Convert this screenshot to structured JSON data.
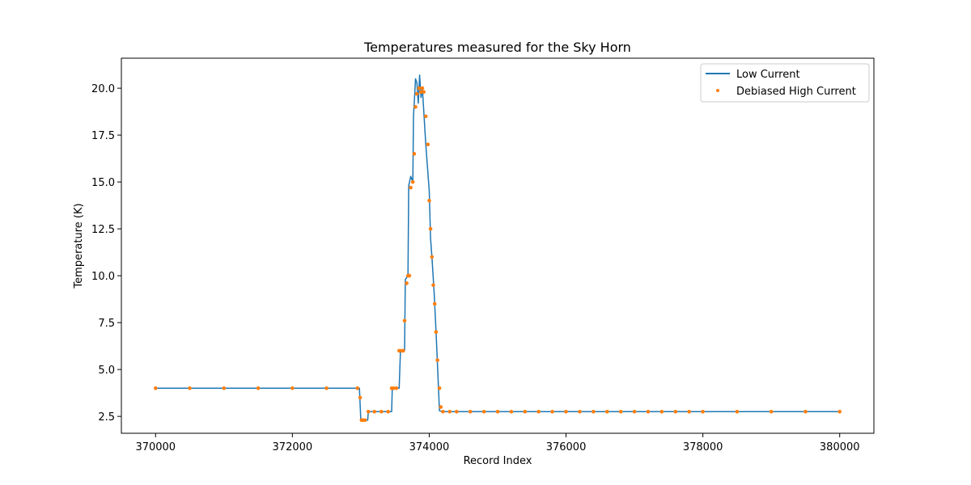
{
  "chart_data": {
    "type": "line",
    "title": "Temperatures measured for the Sky Horn",
    "xlabel": "Record Index",
    "ylabel": "Temperature (K)",
    "xlim": [
      369500,
      380500
    ],
    "ylim": [
      1.6,
      21.6
    ],
    "x_ticks": [
      370000,
      372000,
      374000,
      376000,
      378000,
      380000
    ],
    "y_ticks": [
      2.5,
      5.0,
      7.5,
      10.0,
      12.5,
      15.0,
      17.5,
      20.0
    ],
    "y_tick_labels": [
      "2.5",
      "5.0",
      "7.5",
      "10.0",
      "12.5",
      "15.0",
      "17.5",
      "20.0"
    ],
    "legend": {
      "position": "upper right"
    },
    "colors": {
      "low_current": "#1f77b4",
      "high_current": "#ff7f0e"
    },
    "series": [
      {
        "name": "Low Current",
        "style": "line",
        "x": [
          370000,
          372980,
          373000,
          373020,
          373100,
          373110,
          373450,
          373460,
          373560,
          373580,
          373640,
          373650,
          373690,
          373700,
          373730,
          373760,
          373770,
          373790,
          373800,
          373820,
          373840,
          373860,
          373880,
          373900,
          373950,
          374000,
          374020,
          374040,
          374070,
          374100,
          374130,
          374150,
          374200,
          380000
        ],
        "values": [
          4.0,
          4.0,
          2.3,
          2.3,
          2.3,
          2.75,
          2.75,
          4.0,
          4.0,
          6.0,
          6.0,
          9.8,
          10.0,
          14.8,
          15.3,
          15.0,
          18.5,
          19.8,
          20.5,
          20.3,
          19.2,
          20.7,
          19.5,
          20.0,
          17.0,
          14.5,
          12.0,
          11.0,
          9.2,
          7.0,
          4.5,
          2.8,
          2.75,
          2.75
        ]
      },
      {
        "name": "Debiased High Current",
        "style": "scatter",
        "x": [
          370000,
          370500,
          371000,
          371500,
          372000,
          372500,
          372950,
          372990,
          373010,
          373030,
          373060,
          373110,
          373200,
          373300,
          373400,
          373450,
          373480,
          373520,
          373560,
          373600,
          373620,
          373640,
          373670,
          373690,
          373710,
          373730,
          373760,
          373780,
          373800,
          373820,
          373850,
          373880,
          373900,
          373920,
          373950,
          373980,
          374000,
          374020,
          374040,
          374060,
          374080,
          374100,
          374120,
          374150,
          374170,
          374200,
          374300,
          374400,
          374600,
          374800,
          375000,
          375200,
          375400,
          375600,
          375800,
          376000,
          376200,
          376400,
          376600,
          376800,
          377000,
          377200,
          377400,
          377600,
          377800,
          378000,
          378500,
          379000,
          379500,
          380000
        ],
        "values": [
          4.0,
          4.0,
          4.0,
          4.0,
          4.0,
          4.0,
          4.0,
          3.5,
          2.3,
          2.3,
          2.3,
          2.75,
          2.75,
          2.75,
          2.75,
          4.0,
          4.0,
          4.0,
          6.0,
          6.0,
          6.0,
          7.6,
          9.6,
          10.0,
          10.0,
          14.7,
          15.0,
          16.5,
          19.0,
          19.7,
          20.0,
          19.8,
          20.0,
          19.8,
          18.5,
          17.0,
          14.0,
          12.5,
          11.0,
          9.5,
          8.5,
          7.0,
          5.5,
          4.0,
          3.0,
          2.75,
          2.75,
          2.75,
          2.75,
          2.75,
          2.75,
          2.75,
          2.75,
          2.75,
          2.75,
          2.75,
          2.75,
          2.75,
          2.75,
          2.75,
          2.75,
          2.75,
          2.75,
          2.75,
          2.75,
          2.75,
          2.75,
          2.75,
          2.75,
          2.75
        ]
      }
    ]
  }
}
